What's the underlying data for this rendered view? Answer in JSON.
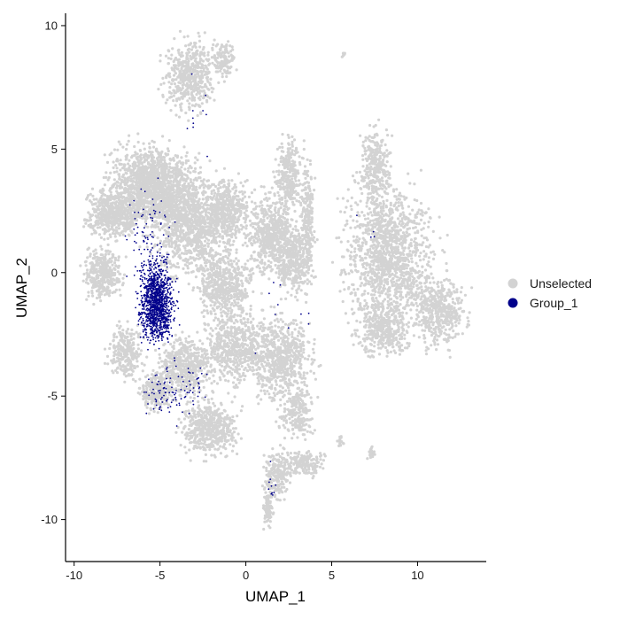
{
  "chart_data": {
    "type": "scatter",
    "title": "",
    "xlabel": "UMAP_1",
    "ylabel": "UMAP_2",
    "xlim": [
      -10.5,
      14
    ],
    "ylim": [
      -11.7,
      10.5
    ],
    "x_ticks": [
      -10,
      -5,
      0,
      5,
      10
    ],
    "y_ticks": [
      -10,
      -5,
      0,
      5,
      10
    ],
    "x_tick_labels": [
      "-10",
      "-5",
      "0",
      "5",
      "10"
    ],
    "y_tick_labels": [
      "-10",
      "-5",
      "0",
      "5",
      "10"
    ],
    "grid": false,
    "legend_position": "right",
    "series": [
      {
        "name": "Unselected",
        "color": "#d3d3d3",
        "regions": [
          {
            "cx": -3.3,
            "cy": 8.0,
            "rx": 1.3,
            "ry": 1.3,
            "n": 500
          },
          {
            "cx": -1.3,
            "cy": 8.6,
            "rx": 0.6,
            "ry": 0.7,
            "n": 120
          },
          {
            "cx": -5.5,
            "cy": 3.5,
            "rx": 2.2,
            "ry": 1.5,
            "n": 1400
          },
          {
            "cx": -7.8,
            "cy": 2.4,
            "rx": 1.4,
            "ry": 0.9,
            "n": 500
          },
          {
            "cx": -8.3,
            "cy": 0.0,
            "rx": 1.0,
            "ry": 1.0,
            "n": 350
          },
          {
            "cx": -3.2,
            "cy": 2.0,
            "rx": 1.9,
            "ry": 2.0,
            "n": 1000
          },
          {
            "cx": -1.0,
            "cy": 2.5,
            "rx": 1.2,
            "ry": 1.2,
            "n": 450
          },
          {
            "cx": -1.2,
            "cy": -0.5,
            "rx": 1.5,
            "ry": 1.3,
            "n": 500
          },
          {
            "cx": 1.5,
            "cy": 1.5,
            "rx": 1.3,
            "ry": 1.5,
            "n": 550
          },
          {
            "cx": 2.5,
            "cy": 4.0,
            "rx": 0.7,
            "ry": 1.3,
            "n": 300
          },
          {
            "cx": 2.8,
            "cy": 0.5,
            "rx": 1.0,
            "ry": 1.2,
            "n": 380
          },
          {
            "cx": 3.6,
            "cy": 2.2,
            "rx": 0.35,
            "ry": 2.3,
            "n": 220
          },
          {
            "cx": 7.5,
            "cy": 4.3,
            "rx": 0.8,
            "ry": 1.4,
            "n": 280
          },
          {
            "cx": 8.3,
            "cy": 0.8,
            "rx": 2.4,
            "ry": 2.6,
            "n": 1300
          },
          {
            "cx": 11.3,
            "cy": -1.5,
            "rx": 1.4,
            "ry": 1.4,
            "n": 450
          },
          {
            "cx": 8.0,
            "cy": -2.3,
            "rx": 1.4,
            "ry": 1.0,
            "n": 380
          },
          {
            "cx": -7.0,
            "cy": -3.2,
            "rx": 0.9,
            "ry": 1.0,
            "n": 260
          },
          {
            "cx": -3.5,
            "cy": -3.8,
            "rx": 1.4,
            "ry": 1.1,
            "n": 500
          },
          {
            "cx": -0.5,
            "cy": -3.0,
            "rx": 1.8,
            "ry": 1.5,
            "n": 600
          },
          {
            "cx": 2.2,
            "cy": -3.5,
            "rx": 1.6,
            "ry": 1.6,
            "n": 600
          },
          {
            "cx": 3.0,
            "cy": -5.6,
            "rx": 0.9,
            "ry": 1.0,
            "n": 220
          },
          {
            "cx": -5.2,
            "cy": -4.8,
            "rx": 0.9,
            "ry": 0.7,
            "n": 250
          },
          {
            "cx": -2.1,
            "cy": -6.3,
            "rx": 1.5,
            "ry": 1.0,
            "n": 520
          },
          {
            "cx": 1.8,
            "cy": -8.2,
            "rx": 0.7,
            "ry": 0.9,
            "n": 200
          },
          {
            "cx": 3.3,
            "cy": -7.7,
            "rx": 1.3,
            "ry": 0.5,
            "n": 180
          },
          {
            "cx": 1.3,
            "cy": -9.5,
            "rx": 0.3,
            "ry": 0.7,
            "n": 90
          },
          {
            "cx": 7.3,
            "cy": -7.3,
            "rx": 0.2,
            "ry": 0.3,
            "n": 25
          },
          {
            "cx": 5.5,
            "cy": -6.9,
            "rx": 0.2,
            "ry": 0.3,
            "n": 15
          },
          {
            "cx": 5.7,
            "cy": 8.8,
            "rx": 0.1,
            "ry": 0.1,
            "n": 6
          }
        ]
      },
      {
        "name": "Group_1",
        "color": "#00008b",
        "regions": [
          {
            "cx": -5.2,
            "cy": -1.2,
            "rx": 0.9,
            "ry": 1.5,
            "n": 1200
          },
          {
            "cx": -5.5,
            "cy": 1.0,
            "rx": 1.3,
            "ry": 2.5,
            "n": 120
          },
          {
            "cx": -4.5,
            "cy": -4.8,
            "rx": 1.2,
            "ry": 1.2,
            "n": 80
          },
          {
            "cx": -3.0,
            "cy": -4.5,
            "rx": 0.9,
            "ry": 0.8,
            "n": 25
          },
          {
            "cx": -3.0,
            "cy": 6.0,
            "rx": 1.0,
            "ry": 1.5,
            "n": 10
          },
          {
            "cx": 1.5,
            "cy": -8.7,
            "rx": 0.3,
            "ry": 1.2,
            "n": 10
          },
          {
            "cx": 2.0,
            "cy": -2.0,
            "rx": 2.0,
            "ry": 1.8,
            "n": 10
          },
          {
            "cx": 7.0,
            "cy": 2.0,
            "rx": 0.8,
            "ry": 1.0,
            "n": 4
          }
        ]
      }
    ]
  }
}
